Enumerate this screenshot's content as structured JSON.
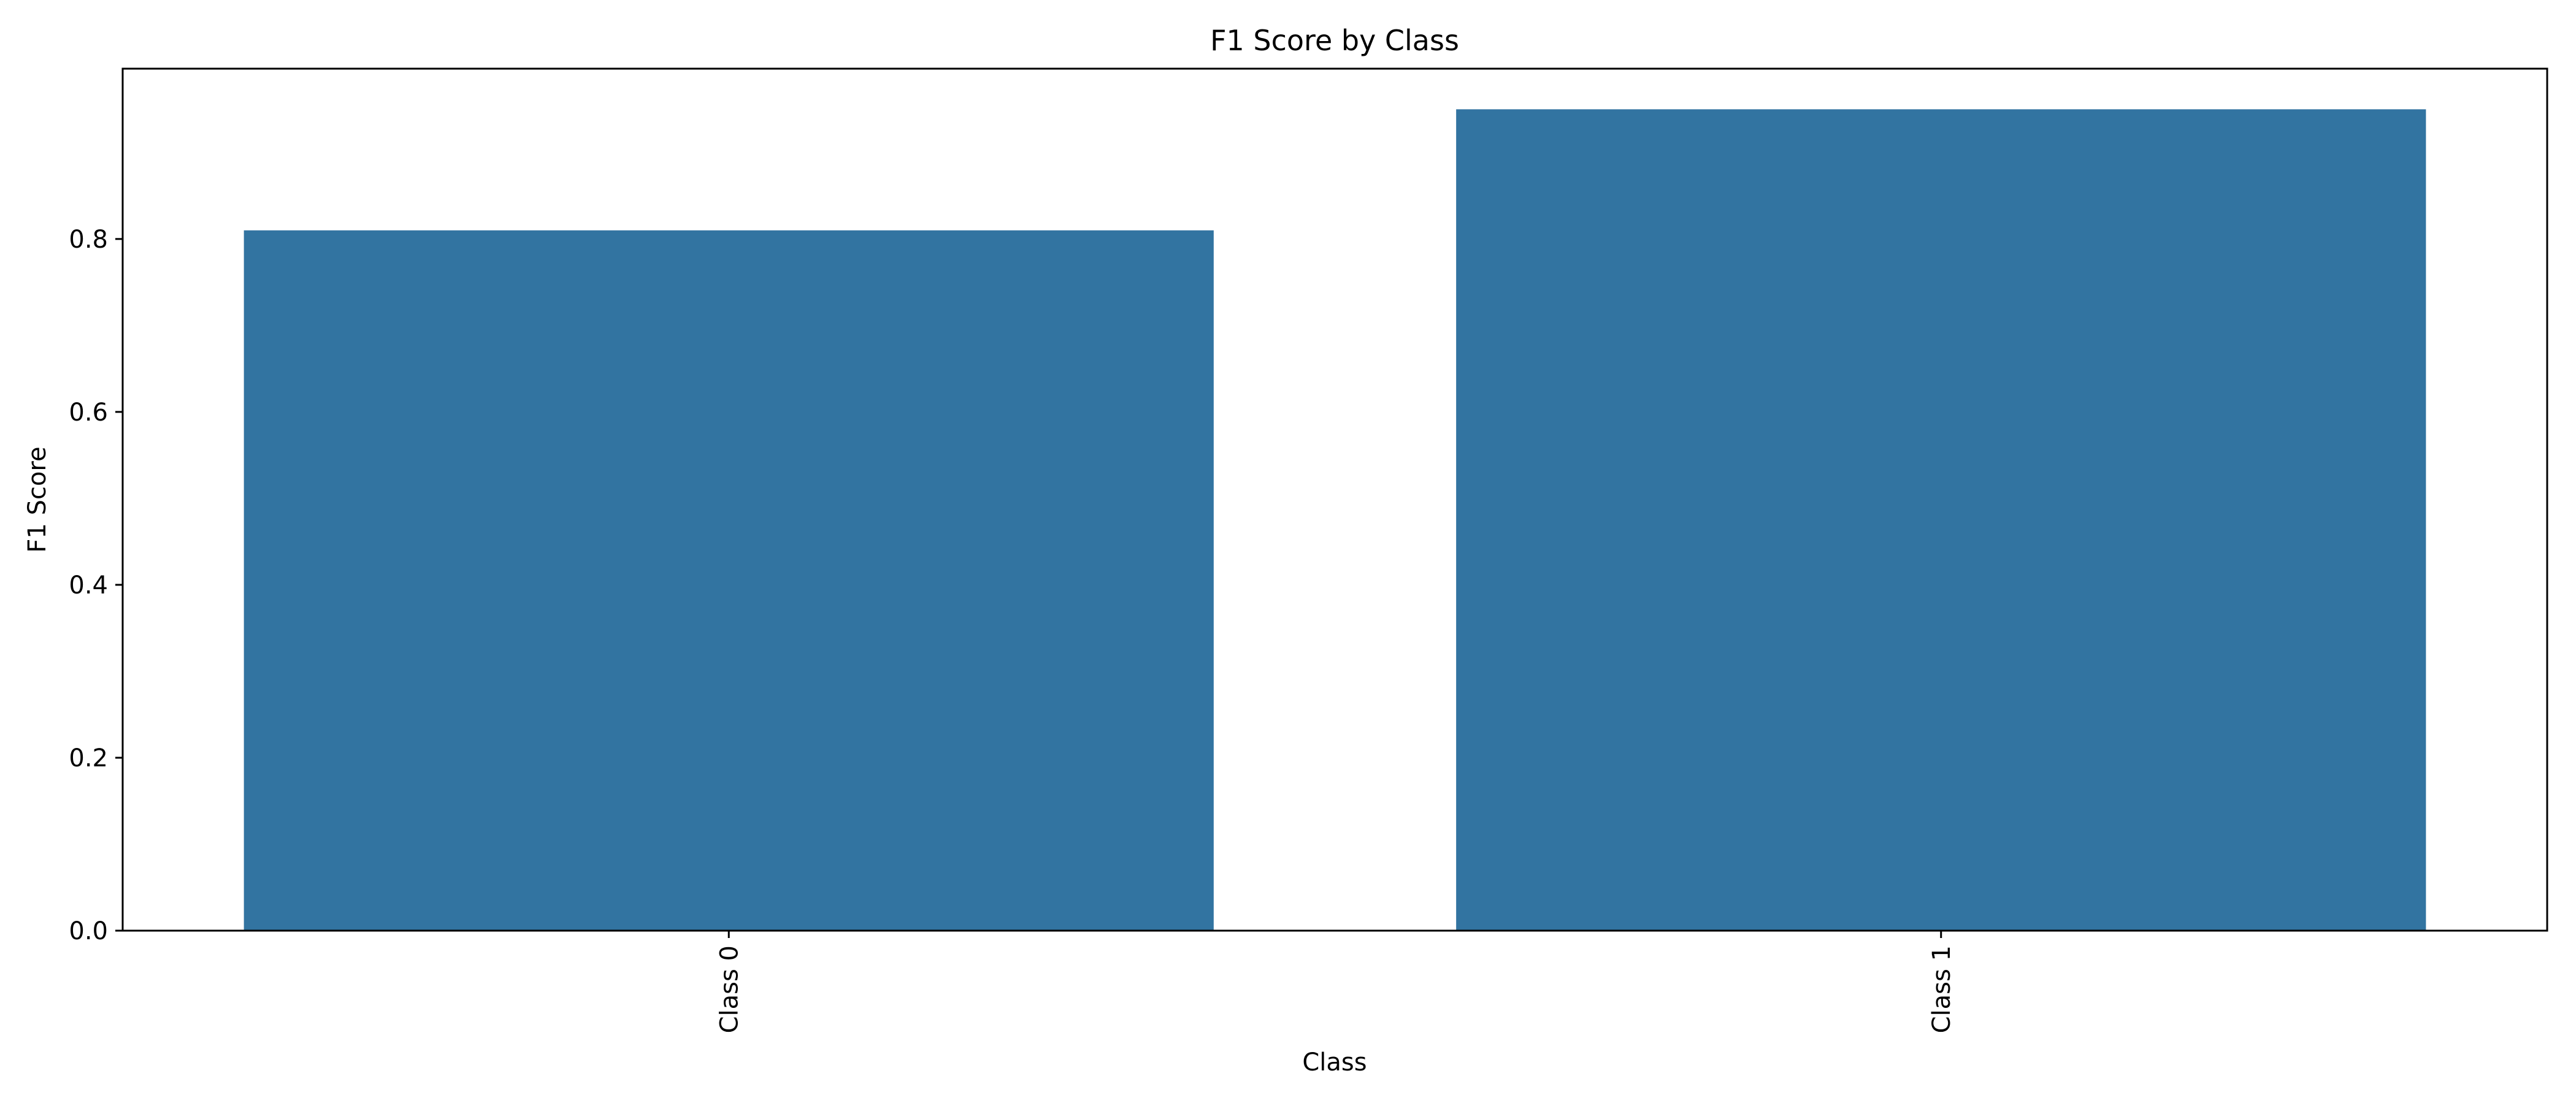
{
  "chart_data": {
    "type": "bar",
    "title": "F1 Score by Class",
    "xlabel": "Class",
    "ylabel": "F1 Score",
    "categories": [
      "Class 0",
      "Class 1"
    ],
    "values": [
      0.81,
      0.95
    ],
    "ylim": [
      0,
      0.997
    ],
    "yticks": [
      0.0,
      0.2,
      0.4,
      0.6,
      0.8
    ],
    "ytick_labels": [
      "0.0",
      "0.2",
      "0.4",
      "0.6",
      "0.8"
    ],
    "x_tick_rotation": 90,
    "grid": false,
    "legend": "none",
    "bar_color": "#3274a1"
  }
}
